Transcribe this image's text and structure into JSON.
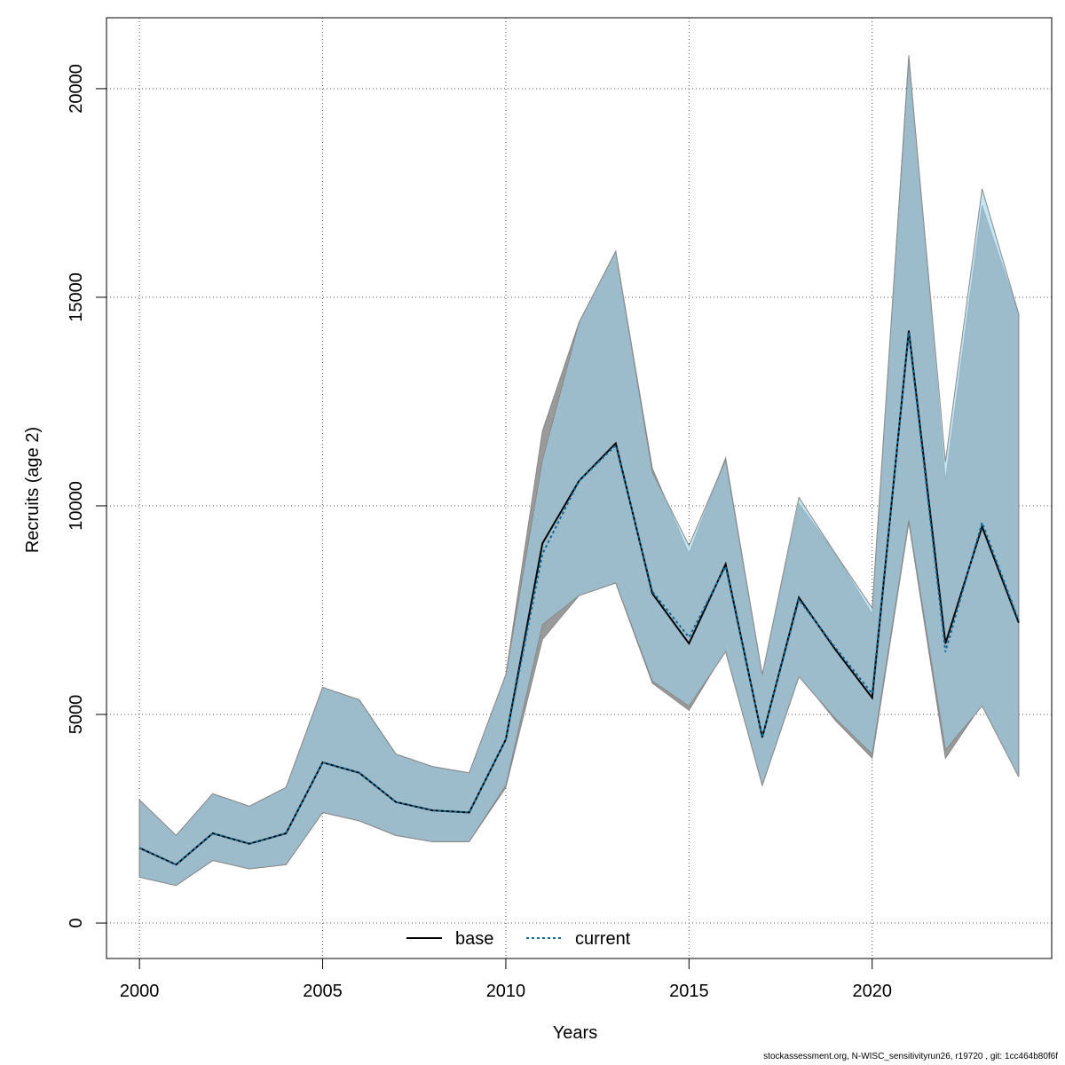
{
  "chart_data": {
    "type": "area",
    "xlabel": "Years",
    "ylabel": "Recruits (age 2)",
    "xlim": [
      1999.1,
      2024.9
    ],
    "ylim": [
      -850,
      21700
    ],
    "x_ticks": [
      2000,
      2005,
      2010,
      2015,
      2020
    ],
    "y_ticks": [
      0,
      5000,
      10000,
      15000,
      20000
    ],
    "grid": true,
    "legend_position": "bottom-center",
    "x": [
      2000,
      2001,
      2002,
      2003,
      2004,
      2005,
      2006,
      2007,
      2008,
      2009,
      2010,
      2011,
      2012,
      2013,
      2014,
      2015,
      2016,
      2017,
      2018,
      2019,
      2020,
      2021,
      2022,
      2023,
      2024
    ],
    "series": [
      {
        "name": "base",
        "line_style": "solid",
        "line_color": "#000000",
        "band_color": "#9a9a9a",
        "values": [
          1800,
          1400,
          2150,
          1900,
          2150,
          3850,
          3600,
          2900,
          2700,
          2650,
          4400,
          9100,
          10600,
          11500,
          7900,
          6700,
          8600,
          4450,
          7800,
          6550,
          5400,
          14200,
          6700,
          9500,
          7200
        ],
        "lower": [
          1100,
          900,
          1500,
          1300,
          1400,
          2650,
          2450,
          2100,
          1950,
          1950,
          3250,
          6800,
          7850,
          8150,
          5750,
          5100,
          6550,
          3300,
          5950,
          4850,
          3950,
          9600,
          3950,
          5250,
          3550
        ],
        "upper": [
          2950,
          2100,
          3100,
          2800,
          3250,
          5650,
          5350,
          4050,
          3750,
          3600,
          5950,
          11800,
          14400,
          16100,
          10900,
          8850,
          11150,
          5950,
          10050,
          8850,
          7400,
          20800,
          10600,
          17200,
          14600
        ]
      },
      {
        "name": "current",
        "line_style": "dotted",
        "line_color": "#0e6b99",
        "band_color": "#9fd3ef",
        "values": [
          1800,
          1400,
          2150,
          1900,
          2150,
          3850,
          3600,
          2900,
          2700,
          2650,
          4400,
          8850,
          10600,
          11450,
          7950,
          6850,
          8550,
          4450,
          7750,
          6600,
          5500,
          14150,
          6500,
          9600,
          7250
        ],
        "lower": [
          1100,
          900,
          1500,
          1300,
          1400,
          2650,
          2450,
          2100,
          1950,
          1950,
          3300,
          7150,
          7850,
          8150,
          5800,
          5200,
          6500,
          3300,
          5900,
          4900,
          4050,
          9650,
          4150,
          5200,
          3500
        ],
        "upper": [
          2950,
          2100,
          3100,
          2800,
          3250,
          5650,
          5350,
          4050,
          3750,
          3600,
          5950,
          11100,
          14400,
          16100,
          10800,
          9050,
          11100,
          5950,
          10200,
          8850,
          7550,
          20750,
          11050,
          17600,
          14600
        ]
      }
    ]
  },
  "footer_text": "stockassessment.org, N-WISC_sensitivityrun26, r19720 , git: 1cc464b80f6f"
}
